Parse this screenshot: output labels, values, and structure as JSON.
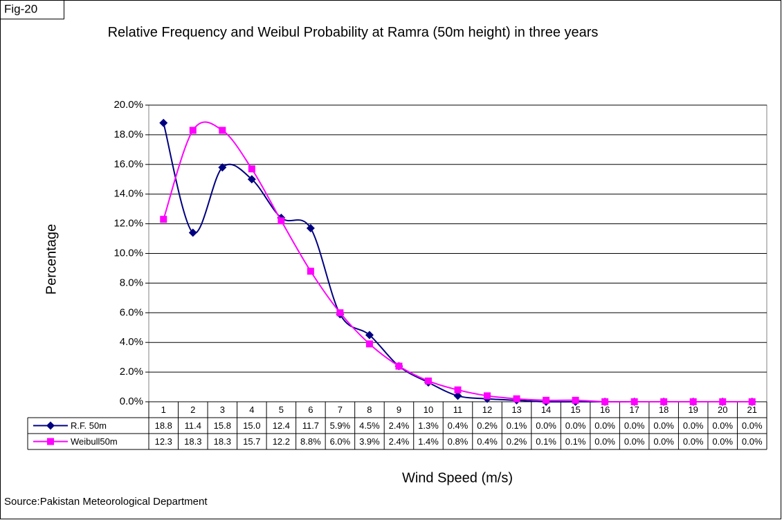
{
  "chart_data": {
    "type": "line",
    "figure_label": "Fig-20",
    "title": "Relative Frequency and Weibul Probability at Ramra (50m height) in three years",
    "x_label": "Wind Speed (m/s)",
    "y_label": "Percentage",
    "source": "Source:Pakistan Meteorological Department",
    "categories": [
      1,
      2,
      3,
      4,
      5,
      6,
      7,
      8,
      9,
      10,
      11,
      12,
      13,
      14,
      15,
      16,
      17,
      18,
      19,
      20,
      21
    ],
    "series": [
      {
        "name": "R.F. 50m",
        "color": "#000080",
        "marker": "diamond",
        "values": [
          18.8,
          11.4,
          15.8,
          15.0,
          12.4,
          11.7,
          5.9,
          4.5,
          2.4,
          1.3,
          0.4,
          0.2,
          0.1,
          0.0,
          0.0,
          0.0,
          0.0,
          0.0,
          0.0,
          0.0,
          0.0
        ],
        "value_labels": [
          "18.8",
          "11.4",
          "15.8",
          "15.0",
          "12.4",
          "11.7",
          "5.9%",
          "4.5%",
          "2.4%",
          "1.3%",
          "0.4%",
          "0.2%",
          "0.1%",
          "0.0%",
          "0.0%",
          "0.0%",
          "0.0%",
          "0.0%",
          "0.0%",
          "0.0%",
          "0.0%"
        ]
      },
      {
        "name": "Weibull50m",
        "color": "#ff00ff",
        "marker": "square",
        "values": [
          12.3,
          18.3,
          18.3,
          15.7,
          12.2,
          8.8,
          6.0,
          3.9,
          2.4,
          1.4,
          0.8,
          0.4,
          0.2,
          0.1,
          0.1,
          0.0,
          0.0,
          0.0,
          0.0,
          0.0,
          0.0
        ],
        "value_labels": [
          "12.3",
          "18.3",
          "18.3",
          "15.7",
          "12.2",
          "8.8%",
          "6.0%",
          "3.9%",
          "2.4%",
          "1.4%",
          "0.8%",
          "0.4%",
          "0.2%",
          "0.1%",
          "0.1%",
          "0.0%",
          "0.0%",
          "0.0%",
          "0.0%",
          "0.0%",
          "0.0%"
        ]
      }
    ],
    "ylim": [
      0,
      20
    ],
    "yticks": [
      {
        "value": 0,
        "label": "0.0%"
      },
      {
        "value": 2,
        "label": "2.0%"
      },
      {
        "value": 4,
        "label": "4.0%"
      },
      {
        "value": 6,
        "label": "6.0%"
      },
      {
        "value": 8,
        "label": "8.0%"
      },
      {
        "value": 10,
        "label": "10.0%"
      },
      {
        "value": 12,
        "label": "12.0%"
      },
      {
        "value": 14,
        "label": "14.0%"
      },
      {
        "value": 16,
        "label": "16.0%"
      },
      {
        "value": 18,
        "label": "18.0%"
      },
      {
        "value": 20,
        "label": "20.0%"
      }
    ],
    "grid": true
  }
}
